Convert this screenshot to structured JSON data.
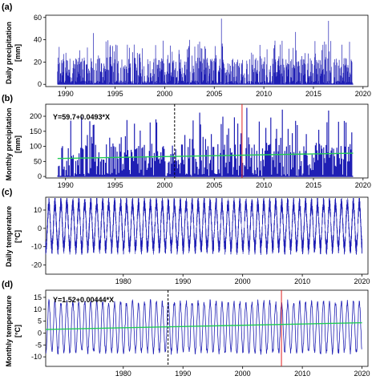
{
  "colors": {
    "series": "#1f1fb4",
    "trend": "#22cc55",
    "changepoint": "#e02020",
    "marker": "#000000"
  },
  "chart_data": [
    {
      "panel_label": "(a)",
      "type": "bar",
      "ylabel": [
        "Daily precipitation",
        "[mm]"
      ],
      "xlim": [
        1988,
        2020.5
      ],
      "ylim": [
        -2,
        62
      ],
      "yticks": [
        0,
        20,
        40,
        60
      ],
      "xticks": [
        1990,
        1995,
        2000,
        2005,
        2010,
        2015,
        2020
      ],
      "x_start": 1989.2,
      "x_end": 2019.0,
      "peaks": [
        {
          "x": 2005.7,
          "y": 59
        },
        {
          "x": 2016.5,
          "y": 57
        },
        {
          "x": 1992.8,
          "y": 46
        },
        {
          "x": 2013.2,
          "y": 47
        }
      ]
    },
    {
      "panel_label": "(b)",
      "type": "bar",
      "ylabel": [
        "Monthly precipitation",
        "[mm]"
      ],
      "xlim": [
        1988,
        2020.5
      ],
      "ylim": [
        -5,
        240
      ],
      "yticks": [
        0,
        50,
        100,
        150,
        200
      ],
      "xticks": [
        1990,
        1995,
        2000,
        2005,
        2010,
        2015,
        2020
      ],
      "x_start": 1989.2,
      "x_end": 2019.0,
      "equation": "Y=59.7+0.0493*X",
      "trend": {
        "intercept": 59.7,
        "slope_per_month": 0.0493
      },
      "dashed_line_x": 2001.0,
      "changepoint_x": 2007.8,
      "peaks": [
        {
          "x": 2008.3,
          "y": 228
        },
        {
          "x": 2011.9,
          "y": 222
        },
        {
          "x": 2016.5,
          "y": 219
        },
        {
          "x": 2003.5,
          "y": 212
        }
      ]
    },
    {
      "panel_label": "(c)",
      "type": "line",
      "ylabel": [
        "Daily temperature",
        "[°C]"
      ],
      "xlim": [
        1967,
        2021
      ],
      "ylim": [
        -25,
        17
      ],
      "yticks": [
        -20,
        -10,
        0,
        10
      ],
      "xticks": [
        1980,
        1990,
        2000,
        2010,
        2020
      ],
      "x_start": 1967.0,
      "x_end": 2020.0,
      "seasonal": {
        "mean": 1.5,
        "amplitude": 12,
        "noise": 4
      }
    },
    {
      "panel_label": "(d)",
      "type": "line",
      "ylabel": [
        "Monthly temperature",
        "[°C]"
      ],
      "xlim": [
        1967,
        2021
      ],
      "ylim": [
        -14,
        18
      ],
      "yticks": [
        -10,
        -5,
        0,
        5,
        10,
        15
      ],
      "xticks": [
        1980,
        1990,
        2000,
        2010,
        2020
      ],
      "x_start": 1967.0,
      "x_end": 2020.0,
      "equation": "Y=1.52+0.00444*X",
      "trend": {
        "intercept": 1.52,
        "slope_per_month": 0.00444
      },
      "dashed_line_x": 1987.5,
      "changepoint_x": 2006.5,
      "seasonal": {
        "mean": 2.5,
        "amplitude": 10.5,
        "noise": 1.2
      }
    }
  ]
}
